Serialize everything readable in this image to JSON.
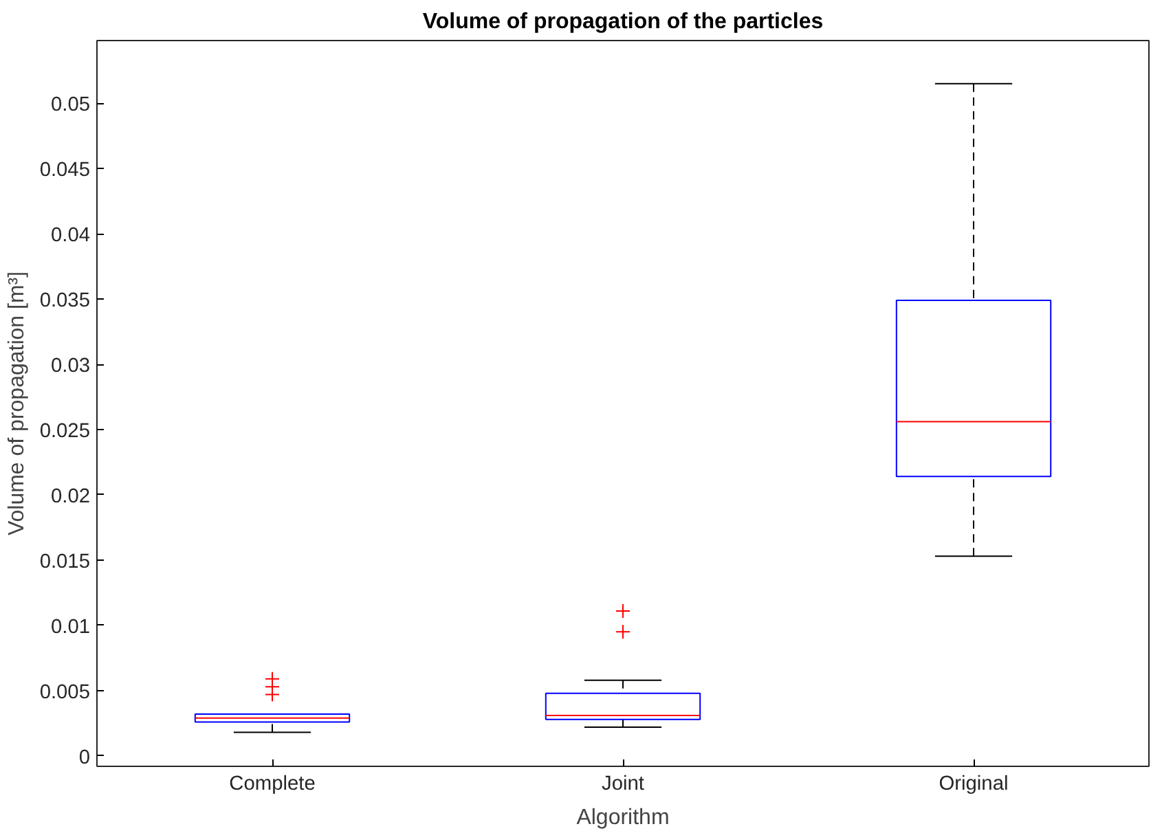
{
  "chart_data": {
    "type": "box",
    "title": "Volume of propagation of the particles",
    "xlabel": "Algorithm",
    "ylabel": "Volume of propagation [m³]",
    "categories": [
      "Complete",
      "Joint",
      "Original"
    ],
    "boxes": [
      {
        "low": 0.0018,
        "q1": 0.0026,
        "median": 0.0029,
        "q3": 0.0032,
        "high": 0.0032,
        "outliers": [
          0.0059,
          0.0053,
          0.0047
        ]
      },
      {
        "low": 0.0022,
        "q1": 0.0028,
        "median": 0.0031,
        "q3": 0.0048,
        "high": 0.0058,
        "outliers": [
          0.0111,
          0.0095
        ]
      },
      {
        "low": 0.0153,
        "q1": 0.0214,
        "median": 0.0256,
        "q3": 0.0349,
        "high": 0.0515
      }
    ],
    "ylim": [
      -0.0008,
      0.0548
    ],
    "yticks": [
      {
        "value": 0,
        "label": "0"
      },
      0.005,
      0.01,
      0.015,
      0.02,
      0.025,
      0.03,
      0.035,
      0.04,
      0.045,
      0.05
    ],
    "grid": false,
    "marker": "cross"
  }
}
